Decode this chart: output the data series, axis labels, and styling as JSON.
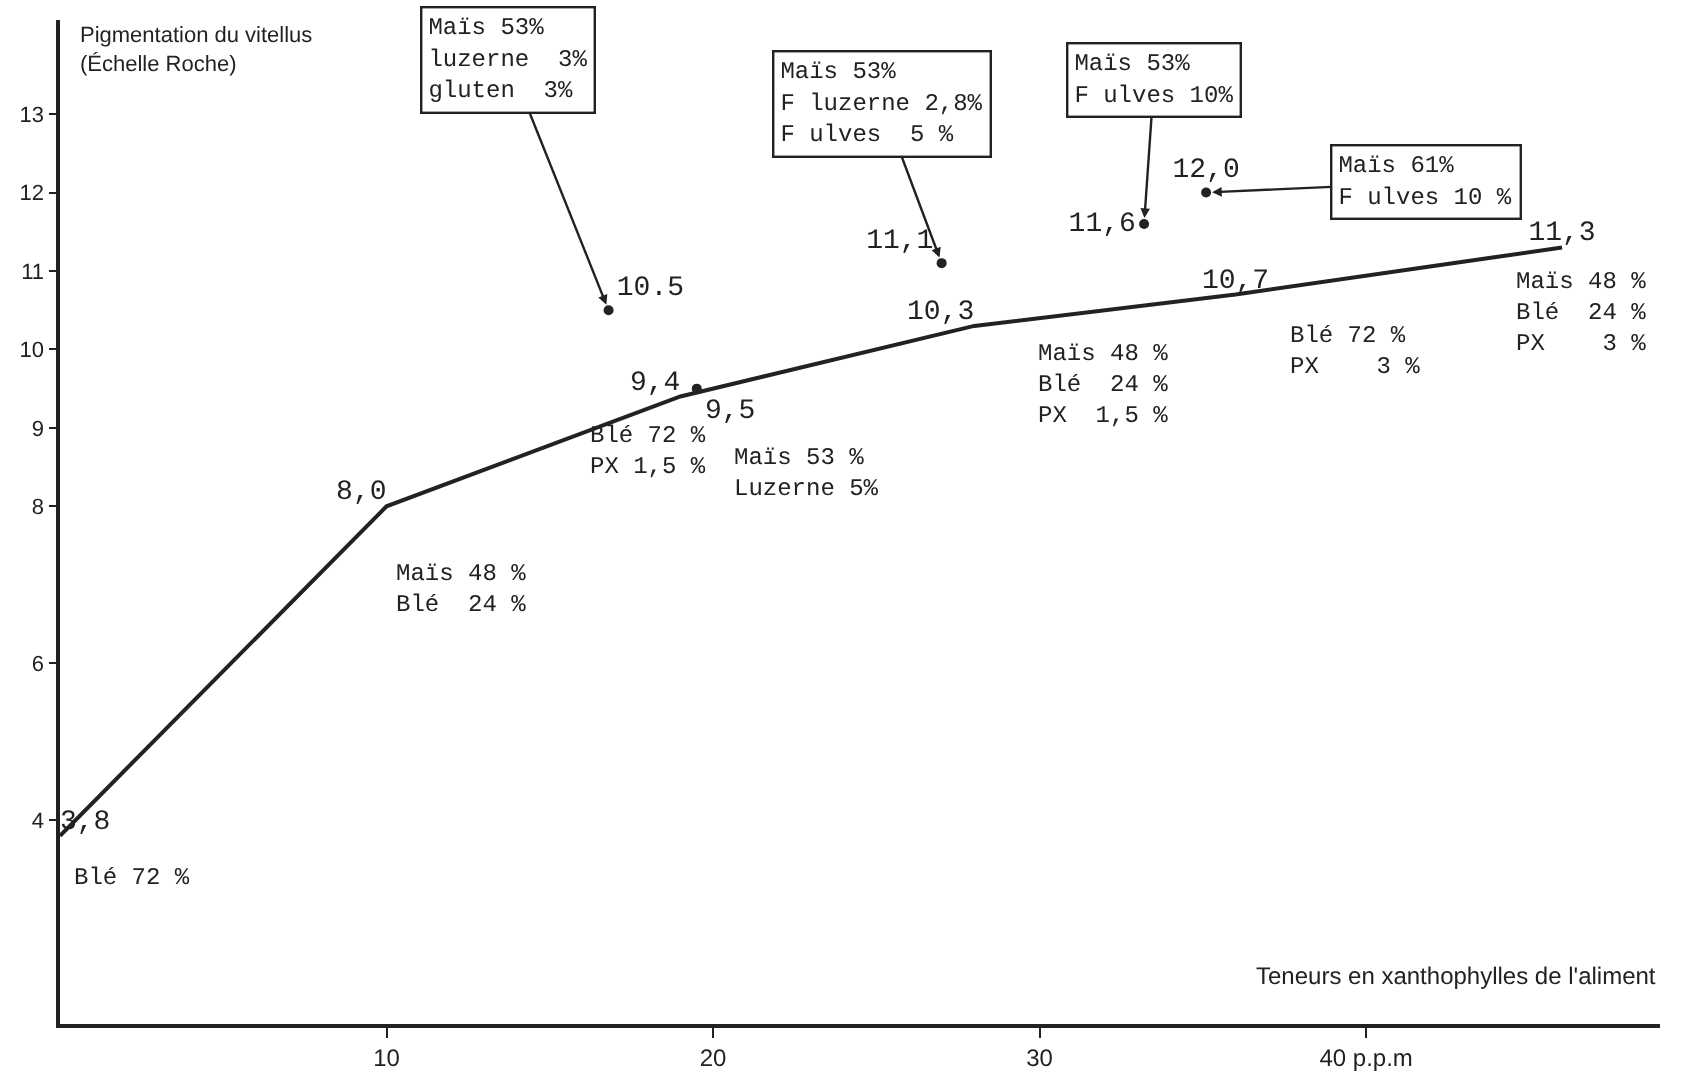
{
  "chart_data": {
    "type": "line",
    "xlabel": "Teneurs en xanthophylles de l'aliment",
    "ylabel": "Pigmentation du vitellus\n(Échelle Roche)",
    "xlim": [
      0,
      49
    ],
    "ylim": [
      1.4,
      14.2
    ],
    "xticks": [
      10,
      20,
      30,
      {
        "value": 40,
        "label": "40 p.p.m"
      }
    ],
    "yticks": [
      4,
      6,
      8,
      9,
      10,
      11,
      12,
      13
    ],
    "series": [
      {
        "type": "line",
        "color": "#222222",
        "marker": "none",
        "line_style": "solid",
        "x": [
          0,
          10,
          19,
          28,
          36,
          46
        ],
        "values": [
          3.8,
          8.0,
          9.4,
          10.3,
          10.7,
          11.3
        ],
        "value_labels": [
          "3,8",
          "8,0",
          "9,4",
          "10,3",
          "10,7",
          "11,3"
        ]
      },
      {
        "type": "scatter",
        "color": "#222222",
        "marker": "circle",
        "x": [
          16.8,
          19.5,
          27,
          33.2,
          35.1
        ],
        "values": [
          10.5,
          9.5,
          11.1,
          11.6,
          12.0
        ],
        "value_labels": [
          "10.5",
          "9,5",
          "11,1",
          "11,6",
          "12,0"
        ]
      }
    ],
    "annotations": [
      {
        "text": "Blé 72 %",
        "x": 0,
        "y": 3.8
      },
      {
        "text": "Maïs 48 %\nBlé  24 %",
        "x": 10,
        "y": 8.0
      },
      {
        "text": "Maïs 53%\nluzerne  3%\ngluten  3%",
        "x": 16.8,
        "y": 10.5
      },
      {
        "text": "Blé 72 %\nPX 1,5 %",
        "x": 19.5,
        "y": 9.5
      },
      {
        "text": "Maïs 53 %\nLuzerne 5%",
        "x": 19,
        "y": 9.4
      },
      {
        "text": "Maïs 53%\nF luzerne 2,8%\nF ulves  5 %",
        "x": 27,
        "y": 11.1
      },
      {
        "text": "Maïs 48 %\nBlé  24 %\nPX  1,5 %",
        "x": 28,
        "y": 10.3
      },
      {
        "text": "Maïs 53%\nF ulves 10%",
        "x": 33.2,
        "y": 11.6
      },
      {
        "text": "Maïs 61%\nF ulves 10 %",
        "x": 35.1,
        "y": 12.0
      },
      {
        "text": "Blé 72 %\nPX    3 %",
        "x": 36,
        "y": 10.7
      },
      {
        "text": "Maïs 48 %\nBlé  24 %\nPX    3 %",
        "x": 46,
        "y": 11.3
      }
    ]
  }
}
